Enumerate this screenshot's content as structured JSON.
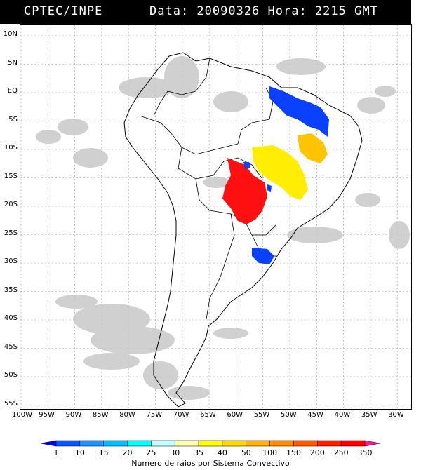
{
  "header": {
    "left": "CPTEC/INPE",
    "right": "Data: 20090326 Hora: 2215 GMT"
  },
  "lat_labels": [
    "10N",
    "5N",
    "EQ",
    "5S",
    "10S",
    "15S",
    "20S",
    "25S",
    "30S",
    "35S",
    "40S",
    "45S",
    "50S",
    "55S"
  ],
  "lon_labels": [
    "100W",
    "95W",
    "90W",
    "85W",
    "80W",
    "75W",
    "70W",
    "65W",
    "60W",
    "55W",
    "50W",
    "45W",
    "40W",
    "35W",
    "30W"
  ],
  "legend": {
    "ticks": [
      "1",
      "10",
      "15",
      "20",
      "25",
      "30",
      "35",
      "40",
      "50",
      "100",
      "150",
      "200",
      "250",
      "350"
    ],
    "colors": [
      "#0000ff",
      "#0a55ff",
      "#1e90ff",
      "#00bfff",
      "#00ffff",
      "#bfffff",
      "#ffffb0",
      "#ffff00",
      "#ffd700",
      "#ffb000",
      "#ff8c00",
      "#ff5a00",
      "#ff2000",
      "#ff0000",
      "#ff1493"
    ],
    "title": "Numero de raios por Sistema Convectivo"
  }
}
